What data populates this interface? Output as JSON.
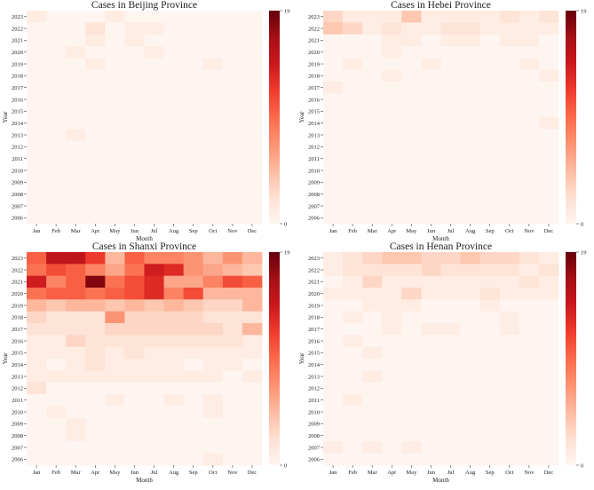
{
  "figure": {
    "colormap": [
      "#fff5f0",
      "#fee0d2",
      "#fcbba1",
      "#fc9272",
      "#fb6a4a",
      "#ef3b2c",
      "#cb181d",
      "#a50f15",
      "#67000d"
    ]
  },
  "chart_data": [
    {
      "id": "beijing",
      "type": "heatmap",
      "title": "Cases in Beijing Province",
      "xlabel": "Month",
      "ylabel": "Year",
      "x_labels": [
        "Jan",
        "Feb",
        "Mar",
        "Apr",
        "May",
        "Jun",
        "Jul",
        "Aug",
        "Sep",
        "Oct",
        "Nov",
        "Dec"
      ],
      "y_labels": [
        "2023",
        "2022",
        "2021",
        "2020",
        "2019",
        "2018",
        "2017",
        "2016",
        "2015",
        "2014",
        "2013",
        "2012",
        "2011",
        "2010",
        "2009",
        "2008",
        "2007",
        "2006"
      ],
      "vmin": 0,
      "vmax": 19,
      "colorbar_ticks": [
        "0",
        "19"
      ],
      "values": [
        [
          1,
          0,
          0,
          0,
          1,
          0,
          0,
          0,
          0,
          0,
          0,
          0
        ],
        [
          0,
          0,
          0,
          2,
          0,
          1,
          1,
          0,
          0,
          0,
          0,
          0
        ],
        [
          0,
          0,
          0,
          1,
          0,
          1,
          0,
          0,
          0,
          0,
          0,
          0
        ],
        [
          0,
          0,
          1,
          0,
          0,
          0,
          1,
          0,
          0,
          0,
          0,
          0
        ],
        [
          0,
          0,
          0,
          1,
          0,
          0,
          0,
          0,
          0,
          1,
          0,
          0
        ],
        [
          0,
          0,
          0,
          0,
          0,
          0,
          0,
          0,
          0,
          0,
          0,
          0
        ],
        [
          0,
          0,
          0,
          0,
          0,
          0,
          0,
          0,
          0,
          0,
          0,
          0
        ],
        [
          0,
          0,
          0,
          0,
          0,
          0,
          0,
          0,
          0,
          0,
          0,
          0
        ],
        [
          0,
          0,
          0,
          0,
          0,
          0,
          0,
          0,
          0,
          0,
          0,
          0
        ],
        [
          0,
          0,
          0,
          0,
          0,
          0,
          0,
          0,
          0,
          0,
          0,
          0
        ],
        [
          0,
          0,
          1,
          0,
          0,
          0,
          0,
          0,
          0,
          0,
          0,
          0
        ],
        [
          0,
          0,
          0,
          0,
          0,
          0,
          0,
          0,
          0,
          0,
          0,
          0
        ],
        [
          0,
          0,
          0,
          0,
          0,
          0,
          0,
          0,
          0,
          0,
          0,
          0
        ],
        [
          0,
          0,
          0,
          0,
          0,
          0,
          0,
          0,
          0,
          0,
          0,
          0
        ],
        [
          0,
          0,
          0,
          0,
          0,
          0,
          0,
          0,
          0,
          0,
          0,
          0
        ],
        [
          0,
          0,
          0,
          0,
          0,
          0,
          0,
          0,
          0,
          0,
          0,
          0
        ],
        [
          0,
          0,
          0,
          0,
          0,
          0,
          0,
          0,
          0,
          0,
          0,
          0
        ],
        [
          0,
          0,
          0,
          0,
          0,
          0,
          0,
          0,
          0,
          0,
          0,
          0
        ]
      ]
    },
    {
      "id": "hebei",
      "type": "heatmap",
      "title": "Cases in Hebei Province",
      "xlabel": "Month",
      "ylabel": "Year",
      "x_labels": [
        "Jan",
        "Feb",
        "Mar",
        "Apr",
        "May",
        "Jun",
        "Jul",
        "Aug",
        "Sep",
        "Oct",
        "Nov",
        "Dec"
      ],
      "y_labels": [
        "2023",
        "2022",
        "2021",
        "2020",
        "2019",
        "2018",
        "2017",
        "2016",
        "2015",
        "2014",
        "2013",
        "2012",
        "2011",
        "2010",
        "2009",
        "2008",
        "2007",
        "2006"
      ],
      "vmin": 0,
      "vmax": 19,
      "colorbar_ticks": [
        "0",
        "19"
      ],
      "values": [
        [
          3,
          1,
          1,
          1,
          4,
          1,
          1,
          1,
          1,
          2,
          1,
          2
        ],
        [
          4,
          3,
          1,
          2,
          1,
          1,
          2,
          2,
          1,
          1,
          1,
          1
        ],
        [
          0,
          0,
          0,
          1,
          1,
          0,
          1,
          1,
          0,
          1,
          1,
          0
        ],
        [
          0,
          0,
          0,
          1,
          0,
          0,
          0,
          0,
          0,
          0,
          0,
          0
        ],
        [
          0,
          1,
          0,
          0,
          0,
          1,
          0,
          0,
          0,
          0,
          1,
          0
        ],
        [
          0,
          0,
          0,
          1,
          0,
          0,
          0,
          0,
          0,
          0,
          0,
          1
        ],
        [
          1,
          0,
          0,
          0,
          0,
          0,
          0,
          0,
          0,
          0,
          0,
          0
        ],
        [
          0,
          0,
          0,
          0,
          0,
          0,
          0,
          0,
          0,
          0,
          0,
          0
        ],
        [
          0,
          0,
          0,
          0,
          0,
          0,
          0,
          0,
          0,
          0,
          0,
          0
        ],
        [
          0,
          0,
          0,
          0,
          0,
          0,
          0,
          0,
          0,
          0,
          0,
          1
        ],
        [
          0,
          0,
          0,
          0,
          0,
          0,
          0,
          0,
          0,
          0,
          0,
          0
        ],
        [
          0,
          0,
          0,
          0,
          0,
          0,
          0,
          0,
          0,
          0,
          0,
          0
        ],
        [
          0,
          0,
          0,
          0,
          0,
          0,
          0,
          0,
          0,
          0,
          0,
          0
        ],
        [
          0,
          0,
          0,
          0,
          0,
          0,
          0,
          0,
          0,
          0,
          0,
          0
        ],
        [
          0,
          0,
          0,
          0,
          0,
          0,
          0,
          0,
          0,
          0,
          0,
          0
        ],
        [
          0,
          0,
          0,
          0,
          0,
          0,
          0,
          0,
          0,
          0,
          0,
          0
        ],
        [
          0,
          0,
          0,
          0,
          0,
          0,
          0,
          0,
          0,
          0,
          0,
          0
        ],
        [
          0,
          0,
          0,
          0,
          0,
          0,
          0,
          0,
          0,
          0,
          0,
          0
        ]
      ]
    },
    {
      "id": "shanxi",
      "type": "heatmap",
      "title": "Cases in Shanxi Province",
      "xlabel": "Month",
      "ylabel": "Year",
      "x_labels": [
        "Jan",
        "Feb",
        "Mar",
        "Apr",
        "May",
        "Jun",
        "Jul",
        "Aug",
        "Sep",
        "Oct",
        "Nov",
        "Dec"
      ],
      "y_labels": [
        "2023",
        "2022",
        "2021",
        "2020",
        "2019",
        "2018",
        "2017",
        "2016",
        "2015",
        "2014",
        "2013",
        "2012",
        "2011",
        "2010",
        "2009",
        "2008",
        "2007",
        "2006"
      ],
      "vmin": 0,
      "vmax": 19,
      "colorbar_ticks": [
        "0",
        "19"
      ],
      "values": [
        [
          10,
          15,
          15,
          12,
          5,
          10,
          8,
          8,
          7,
          5,
          7,
          5
        ],
        [
          9,
          11,
          10,
          8,
          6,
          9,
          14,
          13,
          7,
          6,
          5,
          4
        ],
        [
          14,
          8,
          10,
          18,
          9,
          11,
          13,
          6,
          6,
          8,
          11,
          10
        ],
        [
          9,
          10,
          10,
          9,
          10,
          11,
          13,
          8,
          11,
          5,
          5,
          5
        ],
        [
          5,
          4,
          5,
          5,
          4,
          5,
          4,
          5,
          4,
          3,
          3,
          5
        ],
        [
          3,
          2,
          2,
          2,
          7,
          3,
          3,
          3,
          3,
          2,
          2,
          2
        ],
        [
          2,
          2,
          2,
          2,
          3,
          3,
          3,
          3,
          3,
          3,
          2,
          5
        ],
        [
          1,
          1,
          3,
          2,
          2,
          2,
          2,
          2,
          2,
          2,
          2,
          1
        ],
        [
          1,
          1,
          1,
          2,
          1,
          2,
          1,
          1,
          1,
          1,
          1,
          1
        ],
        [
          1,
          0,
          1,
          2,
          1,
          1,
          1,
          1,
          0,
          1,
          1,
          0
        ],
        [
          1,
          1,
          1,
          1,
          1,
          1,
          1,
          1,
          1,
          1,
          0,
          1
        ],
        [
          2,
          0,
          0,
          0,
          0,
          0,
          0,
          0,
          0,
          0,
          0,
          0
        ],
        [
          0,
          0,
          0,
          0,
          1,
          0,
          0,
          1,
          0,
          1,
          0,
          0
        ],
        [
          0,
          1,
          0,
          0,
          0,
          0,
          0,
          0,
          0,
          1,
          0,
          0
        ],
        [
          0,
          0,
          1,
          0,
          0,
          0,
          0,
          0,
          0,
          0,
          0,
          0
        ],
        [
          0,
          0,
          1,
          0,
          0,
          0,
          0,
          0,
          0,
          0,
          0,
          0
        ],
        [
          0,
          0,
          0,
          0,
          0,
          0,
          0,
          0,
          0,
          0,
          0,
          0
        ],
        [
          0,
          0,
          0,
          0,
          0,
          0,
          0,
          0,
          0,
          1,
          0,
          0
        ]
      ]
    },
    {
      "id": "henan",
      "type": "heatmap",
      "title": "Cases in Henan Province",
      "xlabel": "Month",
      "ylabel": "Year",
      "x_labels": [
        "Jan",
        "Feb",
        "Mar",
        "Apr",
        "May",
        "Jun",
        "Jul",
        "Aug",
        "Sep",
        "Oct",
        "Nov",
        "Dec"
      ],
      "y_labels": [
        "2023",
        "2022",
        "2021",
        "2020",
        "2019",
        "2018",
        "2017",
        "2016",
        "2015",
        "2014",
        "2013",
        "2012",
        "2011",
        "2010",
        "2009",
        "2008",
        "2007",
        "2006"
      ],
      "vmin": 0,
      "vmax": 19,
      "colorbar_ticks": [
        "0",
        "19"
      ],
      "values": [
        [
          1,
          2,
          3,
          4,
          4,
          3,
          3,
          4,
          3,
          3,
          2,
          1
        ],
        [
          1,
          2,
          2,
          2,
          2,
          3,
          2,
          2,
          2,
          2,
          1,
          2
        ],
        [
          0,
          1,
          3,
          1,
          1,
          1,
          1,
          1,
          1,
          1,
          2,
          1
        ],
        [
          1,
          1,
          1,
          1,
          3,
          1,
          1,
          1,
          2,
          1,
          1,
          1
        ],
        [
          0,
          0,
          1,
          1,
          1,
          0,
          0,
          0,
          1,
          0,
          0,
          0
        ],
        [
          0,
          1,
          0,
          1,
          0,
          0,
          0,
          0,
          0,
          1,
          0,
          0
        ],
        [
          0,
          0,
          0,
          1,
          0,
          1,
          1,
          0,
          0,
          1,
          0,
          0
        ],
        [
          0,
          1,
          0,
          0,
          0,
          0,
          0,
          0,
          0,
          0,
          0,
          0
        ],
        [
          0,
          0,
          1,
          0,
          0,
          0,
          0,
          0,
          0,
          0,
          0,
          0
        ],
        [
          0,
          0,
          0,
          0,
          0,
          0,
          0,
          0,
          0,
          0,
          0,
          0
        ],
        [
          0,
          0,
          1,
          0,
          0,
          0,
          0,
          0,
          0,
          0,
          0,
          0
        ],
        [
          0,
          0,
          0,
          0,
          0,
          0,
          0,
          0,
          0,
          0,
          0,
          0
        ],
        [
          0,
          1,
          0,
          0,
          0,
          0,
          0,
          0,
          0,
          0,
          0,
          0
        ],
        [
          0,
          0,
          0,
          0,
          0,
          0,
          0,
          0,
          0,
          0,
          0,
          0
        ],
        [
          0,
          0,
          0,
          0,
          0,
          0,
          0,
          0,
          0,
          0,
          0,
          0
        ],
        [
          0,
          0,
          0,
          0,
          0,
          0,
          0,
          0,
          0,
          0,
          0,
          0
        ],
        [
          1,
          0,
          1,
          0,
          1,
          0,
          0,
          0,
          0,
          0,
          0,
          0
        ],
        [
          0,
          0,
          0,
          0,
          0,
          0,
          0,
          0,
          0,
          0,
          0,
          0
        ]
      ]
    }
  ]
}
